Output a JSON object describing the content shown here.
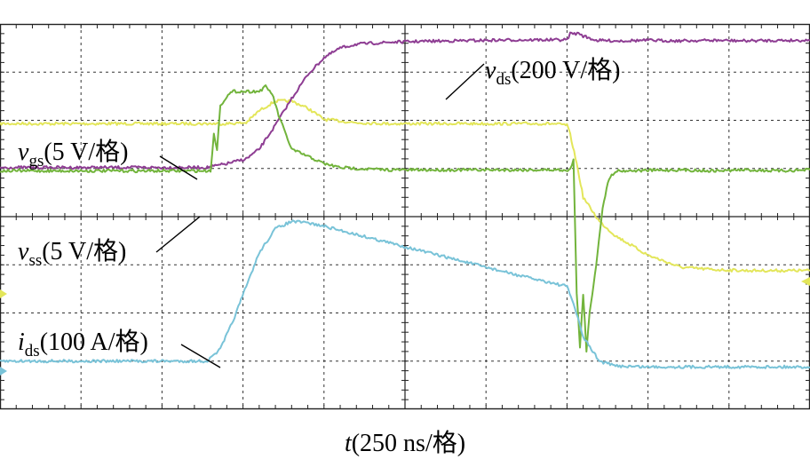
{
  "chart_data": {
    "type": "line",
    "grid": true,
    "x_divisions": 10,
    "y_divisions": 8,
    "x_range": [
      0,
      2500
    ],
    "x_unit": "ns",
    "xlabel": {
      "var": "t",
      "text": "(250 ns/格)"
    },
    "series": [
      {
        "name": "vgs",
        "label": {
          "var": "v",
          "sub": "gs",
          "text": "(5 V/格)"
        },
        "color": "#e3e65a",
        "x": [
          0,
          640,
          700,
          760,
          800,
          850,
          900,
          950,
          1000,
          1100,
          1200,
          1300,
          1400,
          1500,
          1600,
          1700,
          1750,
          1760,
          1780,
          1800,
          1850,
          1900,
          2000,
          2100,
          2200,
          2300,
          2400,
          2500
        ],
        "y": [
          5.93,
          5.93,
          5.93,
          5.95,
          6.2,
          6.4,
          6.4,
          6.25,
          6.02,
          5.95,
          5.93,
          5.93,
          5.93,
          5.93,
          5.93,
          5.93,
          5.9,
          5.7,
          5.1,
          4.4,
          3.9,
          3.6,
          3.2,
          2.95,
          2.9,
          2.88,
          2.88,
          2.88
        ]
      },
      {
        "name": "vss",
        "label": {
          "var": "v",
          "sub": "ss",
          "text": "(5 V/格)"
        },
        "color": "#72b43c",
        "x": [
          0,
          640,
          650,
          660,
          670,
          680,
          700,
          720,
          800,
          820,
          840,
          860,
          880,
          900,
          1000,
          1050,
          1100,
          1200,
          1300,
          1500,
          1700,
          1760,
          1770,
          1780,
          1790,
          1800,
          1810,
          1820,
          1840,
          1860,
          1880,
          1900,
          2000,
          2100,
          2200,
          2300,
          2400,
          2500
        ],
        "y": [
          4.95,
          4.95,
          4.95,
          5.7,
          5.4,
          6.3,
          6.5,
          6.6,
          6.6,
          6.7,
          6.55,
          6.1,
          5.75,
          5.4,
          5.1,
          5.02,
          5.0,
          4.97,
          4.97,
          4.97,
          4.97,
          4.97,
          5.2,
          2.4,
          1.3,
          2.4,
          1.2,
          2.0,
          3.0,
          4.2,
          4.8,
          4.95,
          4.96,
          4.97,
          4.95,
          4.97,
          4.95,
          4.97
        ]
      },
      {
        "name": "vds",
        "label": {
          "var": "v",
          "sub": "ds",
          "text": "(200 V/格)"
        },
        "color": "#8e3d93",
        "x": [
          0,
          640,
          700,
          760,
          800,
          850,
          900,
          950,
          1000,
          1050,
          1100,
          1200,
          1300,
          1400,
          1500,
          1600,
          1700,
          1750,
          1760,
          1790,
          1800,
          1840,
          1900,
          2000,
          2100,
          2200,
          2300,
          2400,
          2500
        ],
        "y": [
          5.02,
          5.02,
          5.1,
          5.2,
          5.4,
          5.9,
          6.45,
          6.95,
          7.3,
          7.5,
          7.58,
          7.62,
          7.64,
          7.65,
          7.66,
          7.67,
          7.67,
          7.67,
          7.8,
          7.8,
          7.75,
          7.66,
          7.65,
          7.66,
          7.65,
          7.66,
          7.65,
          7.66,
          7.66
        ]
      },
      {
        "name": "ids",
        "label": {
          "var": "i",
          "sub": "ds",
          "text": "(100 A/格)"
        },
        "color": "#79c3d8",
        "x": [
          0,
          640,
          680,
          720,
          760,
          800,
          850,
          900,
          950,
          1000,
          1100,
          1200,
          1300,
          1400,
          1500,
          1600,
          1700,
          1750,
          1770,
          1800,
          1850,
          1900,
          2000,
          2100,
          2200,
          2300,
          2400,
          2500
        ],
        "y": [
          1.0,
          1.0,
          1.25,
          1.85,
          2.55,
          3.25,
          3.75,
          3.9,
          3.87,
          3.8,
          3.63,
          3.46,
          3.29,
          3.12,
          2.95,
          2.78,
          2.63,
          2.55,
          2.2,
          1.5,
          1.0,
          0.9,
          0.88,
          0.88,
          0.88,
          0.88,
          0.88,
          0.88
        ]
      }
    ]
  }
}
